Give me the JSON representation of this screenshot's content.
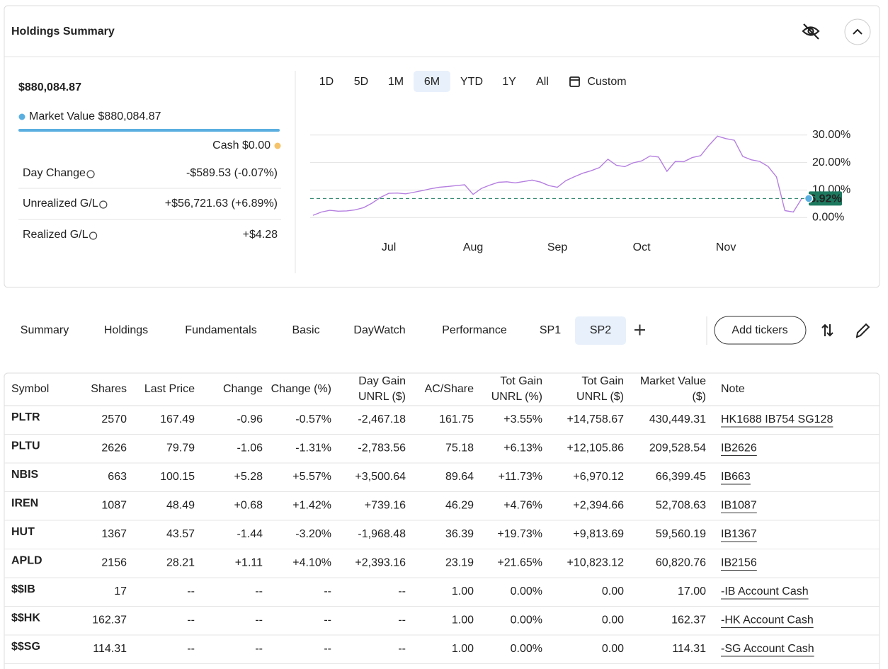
{
  "header": {
    "title": "Holdings Summary"
  },
  "summary": {
    "total": "$880,084.87",
    "market_value": "Market Value $880,084.87",
    "cash": "Cash $0.00",
    "rows": [
      {
        "label": "Day Change",
        "value": "-$589.53 (-0.07%)"
      },
      {
        "label": "Unrealized G/L",
        "value": "+$56,721.63 (+6.89%)"
      },
      {
        "label": "Realized G/L",
        "value": "+$4.28"
      }
    ]
  },
  "ranges": {
    "options": [
      "1D",
      "5D",
      "1M",
      "6M",
      "YTD",
      "1Y",
      "All",
      "Custom"
    ],
    "selected": 3
  },
  "chart_data": {
    "type": "line",
    "color": "#b57fe0",
    "categories": [
      null,
      null,
      null,
      null,
      null,
      null,
      null,
      null,
      null,
      "Jul",
      null,
      null,
      null,
      null,
      null,
      null,
      null,
      null,
      null,
      "Aug",
      null,
      null,
      null,
      null,
      null,
      null,
      null,
      null,
      null,
      "Sep",
      null,
      null,
      null,
      null,
      null,
      null,
      null,
      null,
      null,
      "Oct",
      null,
      null,
      null,
      null,
      null,
      null,
      null,
      null,
      null,
      "Nov",
      null,
      null,
      null,
      null,
      null,
      null,
      null,
      null,
      null
    ],
    "values": [
      0.8,
      2.0,
      2.6,
      2.3,
      2.4,
      2.8,
      3.6,
      5.2,
      7.3,
      8.8,
      8.9,
      8.6,
      9.2,
      9.8,
      10.5,
      11.0,
      11.3,
      11.6,
      11.9,
      8.4,
      10.6,
      11.8,
      12.8,
      13.0,
      12.6,
      13.1,
      13.6,
      12.9,
      11.6,
      11.0,
      13.4,
      14.8,
      16.1,
      17.0,
      18.2,
      21.2,
      19.0,
      18.5,
      19.9,
      20.6,
      22.4,
      22.0,
      16.8,
      20.4,
      20.3,
      21.8,
      22.5,
      26.3,
      29.6,
      28.7,
      28.1,
      22.2,
      21.0,
      20.4,
      18.6,
      14.8,
      2.5,
      2.0,
      6.92
    ],
    "value_labels": [
      null,
      null,
      null,
      null,
      null,
      null,
      null,
      null,
      null,
      null,
      null,
      null,
      null,
      null,
      null,
      null,
      null,
      null,
      null,
      null,
      null,
      null,
      null,
      null,
      null,
      null,
      null,
      null,
      null,
      null,
      null,
      null,
      null,
      null,
      null,
      null,
      null,
      null,
      null,
      null,
      null,
      null,
      null,
      null,
      null,
      null,
      null,
      null,
      null,
      null,
      null,
      null,
      null,
      null,
      null,
      null,
      null,
      null,
      "6.92%"
    ],
    "ylim": [
      -2,
      32
    ],
    "yticks": [
      {
        "value": 0,
        "label": "0.00%"
      },
      {
        "value": 10,
        "label": "10.00%"
      },
      {
        "value": 20,
        "label": "20.00%"
      },
      {
        "value": 30,
        "label": "30.00%"
      }
    ],
    "grid": true
  },
  "tabs": {
    "items": [
      "Summary",
      "Holdings",
      "Fundamentals",
      "Basic",
      "DayWatch",
      "Performance",
      "SP1",
      "SP2"
    ],
    "selected": 7,
    "add_button": "Add tickers"
  },
  "table": {
    "columns": [
      [
        "Symbol"
      ],
      [
        "Shares"
      ],
      [
        "Last Price"
      ],
      [
        "Change"
      ],
      [
        "Change (%)"
      ],
      [
        "Day Gain",
        "UNRL ($)"
      ],
      [
        "AC/Share"
      ],
      [
        "Tot Gain",
        "UNRL (%)"
      ],
      [
        "Tot Gain",
        "UNRL ($)"
      ],
      [
        "Market Value",
        "($)"
      ],
      [
        "Note"
      ]
    ],
    "rows": [
      [
        "PLTR",
        "2570",
        "167.49",
        "-0.96",
        "-0.57%",
        "-2,467.18",
        "161.75",
        "+3.55%",
        "+14,758.67",
        "430,449.31",
        "HK1688 IB754 SG128"
      ],
      [
        "PLTU",
        "2626",
        "79.79",
        "-1.06",
        "-1.31%",
        "-2,783.56",
        "75.18",
        "+6.13%",
        "+12,105.86",
        "209,528.54",
        "IB2626"
      ],
      [
        "NBIS",
        "663",
        "100.15",
        "+5.28",
        "+5.57%",
        "+3,500.64",
        "89.64",
        "+11.73%",
        "+6,970.12",
        "66,399.45",
        "IB663"
      ],
      [
        "IREN",
        "1087",
        "48.49",
        "+0.68",
        "+1.42%",
        "+739.16",
        "46.29",
        "+4.76%",
        "+2,394.66",
        "52,708.63",
        "IB1087"
      ],
      [
        "HUT",
        "1367",
        "43.57",
        "-1.44",
        "-3.20%",
        "-1,968.48",
        "36.39",
        "+19.73%",
        "+9,813.69",
        "59,560.19",
        "IB1367"
      ],
      [
        "APLD",
        "2156",
        "28.21",
        "+1.11",
        "+4.10%",
        "+2,393.16",
        "23.19",
        "+21.65%",
        "+10,823.12",
        "60,820.76",
        "IB2156"
      ],
      [
        "$$IB",
        "17",
        "--",
        "--",
        "--",
        "--",
        "1.00",
        "0.00%",
        "0.00",
        "17.00",
        "-IB Account Cash"
      ],
      [
        "$$HK",
        "162.37",
        "--",
        "--",
        "--",
        "--",
        "1.00",
        "0.00%",
        "0.00",
        "162.37",
        "-HK Account Cash"
      ],
      [
        "$$SG",
        "114.31",
        "--",
        "--",
        "--",
        "--",
        "1.00",
        "0.00%",
        "0.00",
        "114.31",
        "-SG Account Cash"
      ]
    ]
  }
}
